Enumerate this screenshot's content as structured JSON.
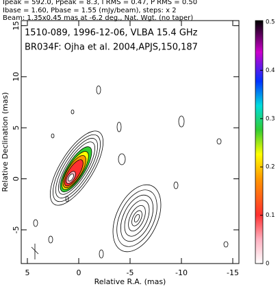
{
  "chart_data": {
    "type": "contour",
    "header": [
      "Ipeak = 592.0, Ppeak = 8.3, I RMS = 0.47, P RMS = 0.50",
      "Ibase = 1.60, Pbase = 1.55 (mJy/beam), steps: x 2",
      "Beam: 1.35x0.45 mas at -6.2 deg., Nat. Wgt. (no taper)"
    ],
    "annotations": [
      "1510-089, 1996-12-06, VLBA 15.4 GHz",
      "BR034F: Ojha et al. 2004,APJS,150,187"
    ],
    "xlabel": "Relative R.A. (mas)",
    "ylabel": "Relative Declination (mas)",
    "xlim": [
      5.6,
      -15.6
    ],
    "xticks": [
      5,
      0,
      -5,
      -10,
      -15
    ],
    "ylim": [
      -8.3,
      15.5
    ],
    "yticks": [
      -5,
      0,
      5,
      10,
      15
    ],
    "colorbar": {
      "lim": [
        0,
        0.5
      ],
      "ticks": [
        0,
        0.1,
        0.2,
        0.3,
        0.4,
        0.5
      ]
    }
  }
}
